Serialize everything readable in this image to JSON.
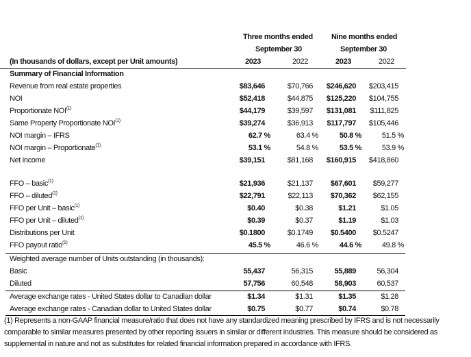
{
  "header": {
    "group1": "Three months ended",
    "group2": "Nine months ended",
    "period1": "September 30",
    "period2": "September 30",
    "caption": "(In thousands of dollars, except per Unit amounts)",
    "years": [
      "2023",
      "2022",
      "2023",
      "2022"
    ]
  },
  "section_title": "Summary of Financial Information",
  "rows": [
    {
      "label": "Revenue from real estate properties",
      "note": "",
      "values": [
        "$83,646",
        "$70,766",
        "$246,620",
        "$203,415"
      ]
    },
    {
      "label": "NOI",
      "note": "",
      "values": [
        "$52,418",
        "$44,875",
        "$125,220",
        "$104,755"
      ]
    },
    {
      "label": "Proportionate NOI",
      "note": "(1)",
      "values": [
        "$44,179",
        "$39,597",
        "$131,081",
        "$111,825"
      ]
    },
    {
      "label": "Same Property Proportionate NOI",
      "note": "(1)",
      "values": [
        "$39,274",
        "$36,913",
        "$117,797",
        "$105,446"
      ]
    },
    {
      "label": "NOI margin – IFRS",
      "note": "",
      "values": [
        "62.7 %",
        "63.4 %",
        "50.8 %",
        "51.5 %"
      ]
    },
    {
      "label": "NOI margin – Proportionate",
      "note": "(1)",
      "values": [
        "53.1 %",
        "54.8 %",
        "53.5 %",
        "53.9 %"
      ]
    },
    {
      "label": "Net income",
      "note": "",
      "values": [
        "$39,151",
        "$81,168",
        "$160,915",
        "$418,860"
      ]
    },
    {
      "label": "FFO – basic",
      "note": "(1)",
      "values": [
        "$21,936",
        "$21,137",
        "$67,601",
        "$59,277"
      ]
    },
    {
      "label": "FFO – diluted",
      "note": "(1)",
      "values": [
        "$22,791",
        "$22,113",
        "$70,362",
        "$62,155"
      ]
    },
    {
      "label": "FFO per Unit – basic",
      "note": "(1)",
      "values": [
        "$0.40",
        "$0.38",
        "$1.21",
        "$1.05"
      ]
    },
    {
      "label": "FFO per Unit – diluted",
      "note": "(1)",
      "values": [
        "$0.39",
        "$0.37",
        "$1.19",
        "$1.03"
      ]
    },
    {
      "label": "Distributions per Unit",
      "note": "",
      "values": [
        "$0.1800",
        "$0.1749",
        "$0.5400",
        "$0.5247"
      ]
    },
    {
      "label": "FFO payout ratio",
      "note": "(1)",
      "values": [
        "45.5 %",
        "46.6 %",
        "44.6 %",
        "49.8 %"
      ]
    },
    {
      "label": "Weighted average number of Units outstanding (in thousands):",
      "note": "",
      "values": [
        "",
        "",
        "",
        ""
      ]
    },
    {
      "label": "Basic",
      "note": "",
      "values": [
        "55,437",
        "56,315",
        "55,889",
        "56,304"
      ]
    },
    {
      "label": "Diluted",
      "note": "",
      "values": [
        "57,756",
        "60,548",
        "58,903",
        "60,537"
      ]
    },
    {
      "label": "Average exchange rates - United States dollar to Canadian dollar",
      "note": "",
      "values": [
        "$1.34",
        "$1.31",
        "$1.35",
        "$1.28"
      ]
    },
    {
      "label": "Average exchange rates - Canadian dollar to United States dollar",
      "note": "",
      "values": [
        "$0.75",
        "$0.77",
        "$0.74",
        "$0.78"
      ]
    }
  ],
  "footnote": "(1)   Represents a non-GAAP financial measure/ratio that does not have any standardized meaning prescribed by IFRS and is not necessarily comparable to similar measures presented by other reporting issuers in similar or different industries. This measure should be considered as supplemental in nature and not as substitutes for related financial information prepared in accordance with IFRS."
}
